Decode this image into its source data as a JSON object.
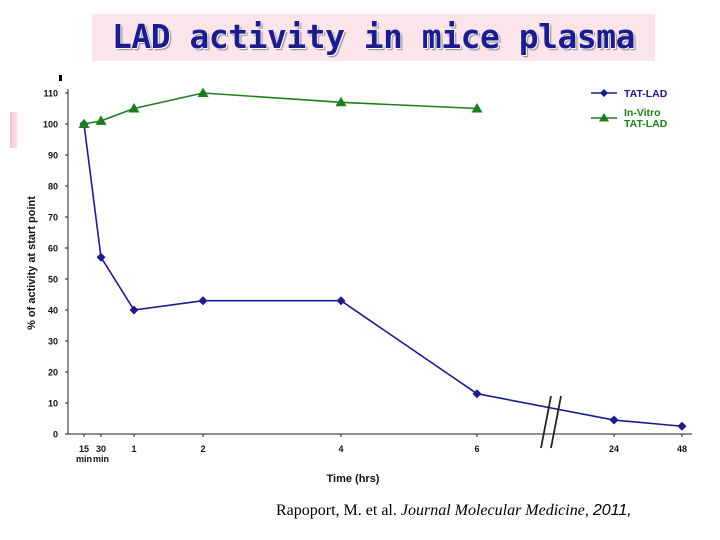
{
  "title": "LAD activity in mice plasma",
  "colors": {
    "tat_lad": "#1c1c8c",
    "invitro": "#1e7e1e",
    "title_bg": "#fbe4ea",
    "title_text": "#1c1c8c"
  },
  "chart_data": {
    "type": "line",
    "title": "",
    "xlabel": "Time (hrs)",
    "ylabel": "% of activity at start point",
    "ylim": [
      0,
      110
    ],
    "y_ticks": [
      "0",
      "10",
      "20",
      "30",
      "40",
      "50",
      "60",
      "70",
      "80",
      "90",
      "100",
      "110"
    ],
    "x_ticks": [
      {
        "line1": "15",
        "line2": "min"
      },
      {
        "line1": "30",
        "line2": "min"
      },
      {
        "line1": "1",
        "line2": ""
      },
      {
        "line1": "2",
        "line2": ""
      },
      {
        "line1": "4",
        "line2": ""
      },
      {
        "line1": "6",
        "line2": ""
      },
      {
        "line1": "24",
        "line2": ""
      },
      {
        "line1": "48",
        "line2": ""
      }
    ],
    "axis_break_after": "6",
    "series": [
      {
        "name": "TAT-LAD",
        "marker": "diamond",
        "values": [
          100,
          57,
          40,
          43,
          43,
          13,
          4.5,
          2.5
        ]
      },
      {
        "name": "In-Vitro TAT-LAD",
        "marker": "triangle",
        "values": [
          100,
          101,
          105,
          110,
          107,
          105,
          null,
          null
        ]
      }
    ],
    "legend": [
      {
        "lines": [
          "TAT-LAD"
        ]
      },
      {
        "lines": [
          "In-Vitro",
          "TAT-LAD"
        ]
      }
    ],
    "legend_position": "top-right"
  },
  "citation": {
    "authors": "Rapoport, M. et al.",
    "journal": "Journal Molecular Medicine,",
    "year": "2011,"
  }
}
